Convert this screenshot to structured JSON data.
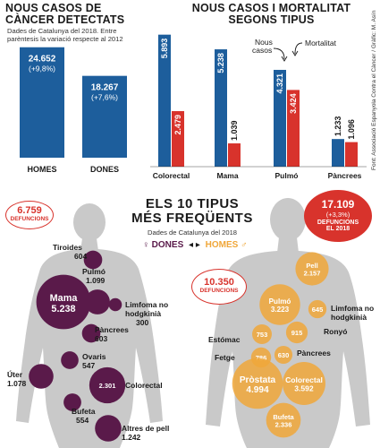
{
  "colors": {
    "blue": "#1d5e9c",
    "red": "#d8332c",
    "purple": "#5a1a4a",
    "orange": "#f0a73a",
    "silhouette": "#c9c9c9",
    "bg": "#ffffff"
  },
  "left": {
    "title_line1": "NOUS CASOS DE",
    "title_line2": "CÀNCER DETECTATS",
    "sub_line1": "Dades de Catalunya del 2018. Entre",
    "sub_line2": "parèntesis la variació respecte al 2012"
  },
  "right": {
    "title_line1": "NOUS CASOS I MORTALITAT",
    "title_line2": "SEGONS TIPUS",
    "legend_new_line1": "Nous",
    "legend_new_line2": "casos",
    "legend_mort": "Mortalitat",
    "source": "Font: Associació Espanyola Contra el Càncer / Gràfic: M. Asín"
  },
  "middle": {
    "title_line1": "ELS 10 TIPUS",
    "title_line2": "MÉS FREQÜENTS",
    "sub": "Dades de Catalunya del 2018",
    "women_label": "♀ DONES",
    "arrows": "◂ ▸",
    "men_label": "HOMES ♂"
  },
  "callouts": {
    "women_deaths_value": "6.759",
    "women_deaths_label": "DEFUNCIONS",
    "men_deaths_value": "10.350",
    "men_deaths_label": "DEFUNCIONS",
    "total_deaths_value": "17.109",
    "total_deaths_change": "(+3,3%)",
    "total_deaths_label1": "DEFUNCIONS",
    "total_deaths_label2": "EL 2018"
  },
  "chart_data": [
    {
      "type": "bar",
      "title": "NOUS CASOS DE CÀNCER DETECTATS",
      "categories": [
        "HOMES",
        "DONES"
      ],
      "values": [
        24652,
        18267
      ],
      "value_labels": [
        "24.652",
        "18.267"
      ],
      "change_labels": [
        "(+9,8%)",
        "(+7,6%)"
      ],
      "ylim": [
        0,
        28000
      ]
    },
    {
      "type": "bar",
      "title": "NOUS CASOS I MORTALITAT SEGONS TIPUS",
      "categories": [
        "Colorectal",
        "Mama",
        "Pulmó",
        "Pàncrees"
      ],
      "series": [
        {
          "name": "Nous casos",
          "values": [
            5893,
            5238,
            4321,
            1233
          ],
          "labels": [
            "5.893",
            "5.238",
            "4.321",
            "1.233"
          ]
        },
        {
          "name": "Mortalitat",
          "values": [
            2479,
            1039,
            3424,
            1096
          ],
          "labels": [
            "2.479",
            "1.039",
            "3.424",
            "1.096"
          ]
        }
      ],
      "ylim": [
        0,
        6200
      ]
    },
    {
      "type": "scatter",
      "title": "ELS 10 TIPUS MÉS FREQÜENTS — DONES",
      "points": [
        {
          "name": "Tiroides",
          "value": 604,
          "label": "604"
        },
        {
          "name": "Pulmó",
          "value": 1099,
          "label": "1.099"
        },
        {
          "name": "Mama",
          "value": 5238,
          "label": "5.238"
        },
        {
          "name": "Limfoma no hodgkinià",
          "value": 300,
          "label": "300"
        },
        {
          "name": "Pàncrees",
          "value": 603,
          "label": "603"
        },
        {
          "name": "Ovaris",
          "value": 547,
          "label": "547"
        },
        {
          "name": "Úter",
          "value": 1078,
          "label": "1.078"
        },
        {
          "name": "Colorectal",
          "value": 2301,
          "label": "2.301"
        },
        {
          "name": "Bufeta",
          "value": 554,
          "label": "554"
        },
        {
          "name": "Altres de pell",
          "value": 1242,
          "label": "1.242"
        }
      ]
    },
    {
      "type": "scatter",
      "title": "ELS 10 TIPUS MÉS FREQÜENTS — HOMES",
      "points": [
        {
          "name": "Pell",
          "value": 2157,
          "label": "2.157"
        },
        {
          "name": "Pulmó",
          "value": 3223,
          "label": "3.223"
        },
        {
          "name": "Limfoma no hodgkinià",
          "value": 645,
          "label": "645"
        },
        {
          "name": "Estómac",
          "value": 753,
          "label": "753"
        },
        {
          "name": "Ronyó",
          "value": 915,
          "label": "915"
        },
        {
          "name": "Fetge",
          "value": 786,
          "label": "786"
        },
        {
          "name": "Pàncrees",
          "value": 630,
          "label": "630"
        },
        {
          "name": "Pròstata",
          "value": 4994,
          "label": "4.994"
        },
        {
          "name": "Colorectal",
          "value": 3592,
          "label": "3.592"
        },
        {
          "name": "Bufeta",
          "value": 2336,
          "label": "2.336"
        }
      ]
    }
  ]
}
